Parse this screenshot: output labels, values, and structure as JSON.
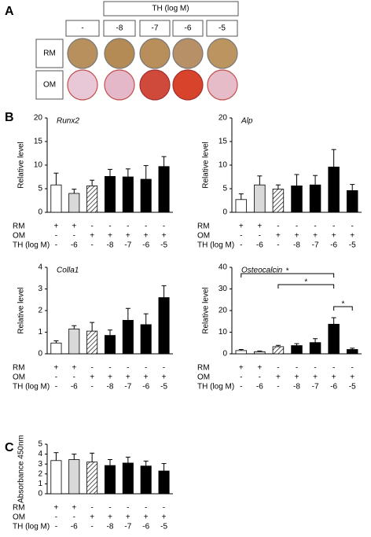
{
  "panel_labels": [
    "A",
    "B",
    "C"
  ],
  "panel_a": {
    "header": "TH (log M)",
    "columns": [
      "-",
      "-8",
      "-7",
      "-6",
      "-5"
    ],
    "rows": [
      "RM",
      "OM"
    ]
  },
  "chart_data": [
    {
      "type": "bar",
      "title": "Runx2",
      "y_label": "Relative level",
      "values": [
        5.8,
        4.0,
        5.6,
        7.6,
        7.5,
        7.0,
        9.7
      ],
      "errors": [
        2.5,
        0.9,
        1.2,
        1.5,
        1.7,
        2.9,
        2.1
      ],
      "colors": [
        "#ffffff",
        "#d9d9d9",
        "#ffffff",
        "#000000",
        "#000000",
        "#000000",
        "#000000"
      ],
      "hatched": [
        false,
        false,
        true,
        false,
        false,
        false,
        false
      ],
      "ylim": [
        0,
        20
      ],
      "yticks": [
        0,
        5,
        10,
        15,
        20
      ],
      "conditions": [
        {
          "label": "RM",
          "values": [
            "+",
            "+",
            "-",
            "-",
            "-",
            "-",
            "-"
          ]
        },
        {
          "label": "OM",
          "values": [
            "-",
            "-",
            "+",
            "+",
            "+",
            "+",
            "+"
          ]
        },
        {
          "label": "TH (log M)",
          "values": [
            "-",
            "-6",
            "-",
            "-8",
            "-7",
            "-6",
            "-5"
          ]
        }
      ]
    },
    {
      "type": "bar",
      "title": "Alp",
      "y_label": "Relative level",
      "values": [
        2.7,
        5.8,
        4.9,
        5.6,
        5.8,
        9.6,
        4.6
      ],
      "errors": [
        1.2,
        1.9,
        0.9,
        2.4,
        2.0,
        3.7,
        1.3
      ],
      "colors": [
        "#ffffff",
        "#d9d9d9",
        "#ffffff",
        "#000000",
        "#000000",
        "#000000",
        "#000000"
      ],
      "hatched": [
        false,
        false,
        true,
        false,
        false,
        false,
        false
      ],
      "ylim": [
        0,
        20
      ],
      "yticks": [
        0,
        5,
        10,
        15,
        20
      ],
      "conditions": [
        {
          "label": "RM",
          "values": [
            "+",
            "+",
            "-",
            "-",
            "-",
            "-",
            "-"
          ]
        },
        {
          "label": "OM",
          "values": [
            "-",
            "-",
            "+",
            "+",
            "+",
            "+",
            "+"
          ]
        },
        {
          "label": "TH (log M)",
          "values": [
            "-",
            "-6",
            "-",
            "-8",
            "-7",
            "-6",
            "-5"
          ]
        }
      ]
    },
    {
      "type": "bar",
      "title": "Colla1",
      "y_label": "Relative level",
      "values": [
        0.5,
        1.15,
        1.05,
        0.85,
        1.55,
        1.35,
        2.6
      ],
      "errors": [
        0.1,
        0.15,
        0.4,
        0.25,
        0.55,
        0.5,
        0.55
      ],
      "colors": [
        "#ffffff",
        "#d9d9d9",
        "#ffffff",
        "#000000",
        "#000000",
        "#000000",
        "#000000"
      ],
      "hatched": [
        false,
        false,
        true,
        false,
        false,
        false,
        false
      ],
      "ylim": [
        0,
        4
      ],
      "yticks": [
        0,
        1,
        2,
        3,
        4
      ],
      "conditions": [
        {
          "label": "RM",
          "values": [
            "+",
            "+",
            "-",
            "-",
            "-",
            "-",
            "-"
          ]
        },
        {
          "label": "OM",
          "values": [
            "-",
            "-",
            "+",
            "+",
            "+",
            "+",
            "+"
          ]
        },
        {
          "label": "TH (log M)",
          "values": [
            "-",
            "-6",
            "-",
            "-8",
            "-7",
            "-6",
            "-5"
          ]
        }
      ]
    },
    {
      "type": "bar",
      "title": "Osteocalcin",
      "y_label": "Relative level",
      "values": [
        1.5,
        1.0,
        3.3,
        3.8,
        5.2,
        13.7,
        2.0
      ],
      "errors": [
        0.5,
        0.3,
        0.6,
        0.9,
        1.8,
        3.0,
        0.6
      ],
      "colors": [
        "#ffffff",
        "#d9d9d9",
        "#ffffff",
        "#000000",
        "#000000",
        "#000000",
        "#000000"
      ],
      "hatched": [
        false,
        false,
        true,
        false,
        false,
        false,
        false
      ],
      "ylim": [
        0,
        40
      ],
      "yticks": [
        0,
        10,
        20,
        30,
        40
      ],
      "significance": [
        "*",
        "*",
        "*"
      ],
      "conditions": [
        {
          "label": "RM",
          "values": [
            "+",
            "+",
            "-",
            "-",
            "-",
            "-",
            "-"
          ]
        },
        {
          "label": "OM",
          "values": [
            "-",
            "-",
            "+",
            "+",
            "+",
            "+",
            "+"
          ]
        },
        {
          "label": "TH (log M)",
          "values": [
            "-",
            "-6",
            "-",
            "-8",
            "-7",
            "-6",
            "-5"
          ]
        }
      ]
    },
    {
      "type": "bar",
      "y_label": "Absorbance 450nm",
      "values": [
        3.35,
        3.45,
        3.2,
        2.85,
        3.1,
        2.8,
        2.3
      ],
      "errors": [
        0.8,
        0.55,
        0.9,
        0.6,
        0.6,
        0.5,
        0.75
      ],
      "colors": [
        "#ffffff",
        "#d9d9d9",
        "#ffffff",
        "#000000",
        "#000000",
        "#000000",
        "#000000"
      ],
      "hatched": [
        false,
        false,
        true,
        false,
        false,
        false,
        false
      ],
      "ylim": [
        0,
        5
      ],
      "yticks": [
        0,
        1,
        2,
        3,
        4,
        5
      ],
      "conditions": [
        {
          "label": "RM",
          "values": [
            "+",
            "+",
            "-",
            "-",
            "-",
            "-",
            "-"
          ]
        },
        {
          "label": "OM",
          "values": [
            "-",
            "-",
            "+",
            "+",
            "+",
            "+",
            "+"
          ]
        },
        {
          "label": "TH (log M)",
          "values": [
            "-",
            "-6",
            "-",
            "-8",
            "-7",
            "-6",
            "-5"
          ]
        }
      ]
    }
  ]
}
